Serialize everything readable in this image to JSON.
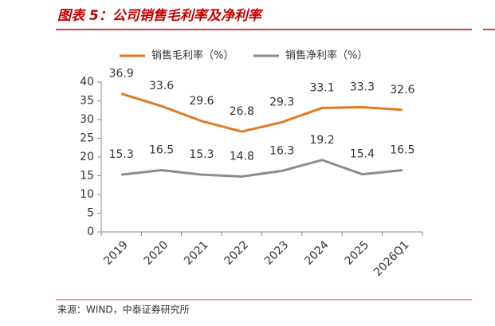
{
  "chart_data": {
    "type": "line",
    "title": "图表 5：公司销售毛利率及净利率",
    "source": "来源：WIND，中泰证券研究所",
    "categories": [
      "2019",
      "2020",
      "2021",
      "2022",
      "2023",
      "2024",
      "2025",
      "2026Q1"
    ],
    "series": [
      {
        "name": "销售毛利率（%）",
        "color": "#e07b1f",
        "values": [
          36.9,
          33.6,
          29.6,
          26.8,
          29.3,
          33.1,
          33.3,
          32.6
        ]
      },
      {
        "name": "销售净利率（%）",
        "color": "#8c8c8c",
        "values": [
          15.3,
          16.5,
          15.3,
          14.8,
          16.3,
          19.2,
          15.4,
          16.5
        ]
      }
    ],
    "ylim": [
      0,
      40
    ],
    "yticks": [
      0,
      5,
      10,
      15,
      20,
      25,
      30,
      35,
      40
    ],
    "grid": false
  }
}
